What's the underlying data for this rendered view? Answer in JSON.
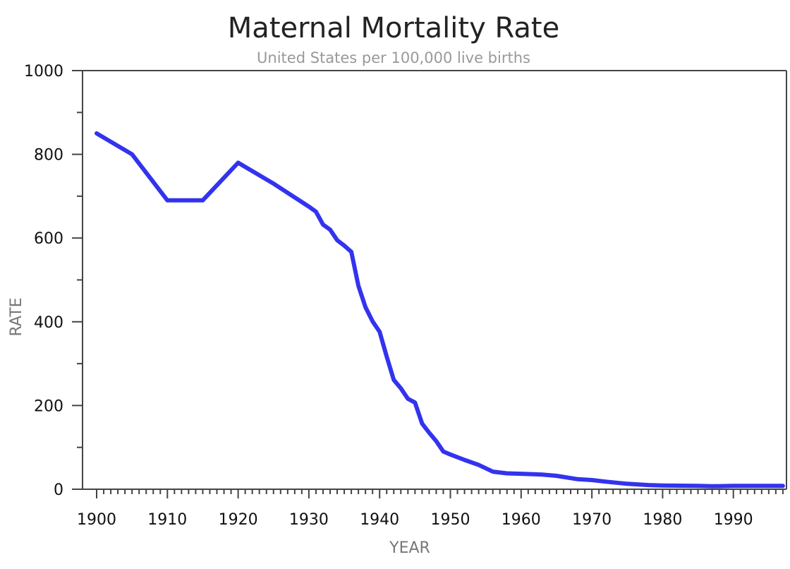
{
  "chart_data": {
    "type": "line",
    "title": "Maternal Mortality Rate",
    "subtitle": "United States per 100,000 live births",
    "xlabel": "YEAR",
    "ylabel": "RATE",
    "xlim": [
      1898,
      1997.7
    ],
    "ylim": [
      0,
      1000
    ],
    "x_ticks": [
      1900,
      1910,
      1920,
      1930,
      1940,
      1950,
      1960,
      1970,
      1980,
      1990
    ],
    "x_tick_labels": [
      "1900",
      "1910",
      "1920",
      "1930",
      "1940",
      "1950",
      "1960",
      "1970",
      "1980",
      "1990"
    ],
    "y_ticks": [
      0,
      200,
      400,
      600,
      800,
      1000
    ],
    "y_tick_labels": [
      "0",
      "200",
      "400",
      "600",
      "800",
      "1000"
    ],
    "y_minor_step": 100,
    "x_minor_step": 1,
    "grid": false,
    "legend": "none",
    "line_color": "#3333ee",
    "series": [
      {
        "name": "Maternal Mortality Rate",
        "x": [
          1900,
          1905,
          1910,
          1915,
          1920,
          1925,
          1930,
          1931,
          1932,
          1933,
          1934,
          1935,
          1936,
          1937,
          1938,
          1939,
          1940,
          1941,
          1942,
          1943,
          1944,
          1945,
          1946,
          1947,
          1948,
          1949,
          1950,
          1952,
          1954,
          1956,
          1958,
          1960,
          1963,
          1965,
          1968,
          1970,
          1972,
          1975,
          1978,
          1980,
          1985,
          1987,
          1990,
          1993,
          1997
        ],
        "values": [
          850,
          800,
          690,
          690,
          780,
          730,
          675,
          663,
          632,
          620,
          595,
          582,
          567,
          486,
          435,
          401,
          376,
          317,
          261,
          241,
          216,
          207,
          157,
          135,
          115,
          90,
          83,
          70,
          58,
          42,
          38,
          37,
          35,
          32,
          24,
          22,
          18,
          13,
          10,
          9,
          8,
          7,
          8,
          8,
          8
        ]
      }
    ]
  }
}
